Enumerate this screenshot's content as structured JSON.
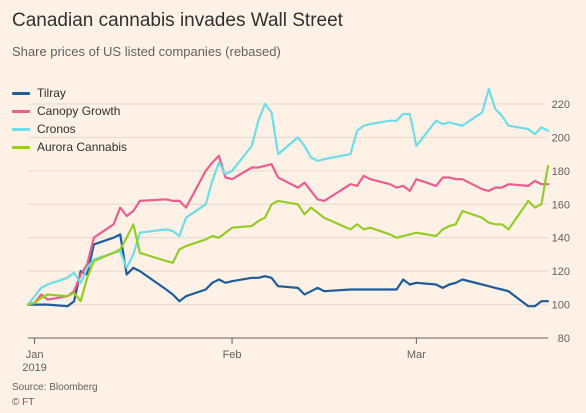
{
  "header": {
    "title": "Canadian cannabis invades Wall Street",
    "subtitle": "Share prices of US listed companies (rebased)"
  },
  "footer": {
    "source": "Source: Bloomberg",
    "credit": "© FT"
  },
  "colors": {
    "background": "#fff1e5",
    "gridline": "#e6d9ce",
    "axis": "#66605c"
  },
  "chart_data": {
    "type": "line",
    "title": "Canadian cannabis invades Wall Street",
    "subtitle": "Share prices of US listed companies (rebased)",
    "xlabel": "",
    "ylabel": "",
    "y_axis_side": "right",
    "ylim": [
      80,
      220
    ],
    "yticks": [
      80,
      100,
      120,
      140,
      160,
      180,
      200,
      220
    ],
    "x_domain": [
      "2019-01-01",
      "2019-03-21"
    ],
    "x_ticks": [
      {
        "date": "2019-01-02",
        "label": "Jan",
        "sublabel": "2019"
      },
      {
        "date": "2019-02-01",
        "label": "Feb",
        "sublabel": ""
      },
      {
        "date": "2019-03-01",
        "label": "Mar",
        "sublabel": ""
      }
    ],
    "grid": true,
    "legend_position": "top-left",
    "x": [
      "2019-01-01",
      "2019-01-02",
      "2019-01-03",
      "2019-01-04",
      "2019-01-07",
      "2019-01-08",
      "2019-01-09",
      "2019-01-10",
      "2019-01-11",
      "2019-01-14",
      "2019-01-15",
      "2019-01-16",
      "2019-01-17",
      "2019-01-18",
      "2019-01-22",
      "2019-01-23",
      "2019-01-24",
      "2019-01-25",
      "2019-01-28",
      "2019-01-29",
      "2019-01-30",
      "2019-01-31",
      "2019-02-01",
      "2019-02-04",
      "2019-02-05",
      "2019-02-06",
      "2019-02-07",
      "2019-02-08",
      "2019-02-11",
      "2019-02-12",
      "2019-02-13",
      "2019-02-14",
      "2019-02-15",
      "2019-02-19",
      "2019-02-20",
      "2019-02-21",
      "2019-02-22",
      "2019-02-25",
      "2019-02-26",
      "2019-02-27",
      "2019-02-28",
      "2019-03-01",
      "2019-03-04",
      "2019-03-05",
      "2019-03-06",
      "2019-03-07",
      "2019-03-08",
      "2019-03-11",
      "2019-03-12",
      "2019-03-13",
      "2019-03-14",
      "2019-03-15",
      "2019-03-18",
      "2019-03-19",
      "2019-03-20",
      "2019-03-21"
    ],
    "series": [
      {
        "name": "Tilray",
        "color": "#1f5c99",
        "values": [
          100,
          100,
          100,
          100,
          99,
          102,
          120,
          118,
          136,
          140,
          142,
          118,
          122,
          120,
          109,
          106,
          102,
          105,
          109,
          113,
          115,
          113,
          114,
          116,
          116,
          117,
          116,
          111,
          110,
          106,
          108,
          110,
          108,
          109,
          109,
          109,
          109,
          109,
          109,
          115,
          112,
          113,
          112,
          110,
          112,
          113,
          115,
          112,
          111,
          110,
          109,
          108,
          99,
          99,
          102,
          102
        ]
      },
      {
        "name": "Canopy Growth",
        "color": "#eb5e8d",
        "values": [
          100,
          101,
          106,
          103,
          105,
          108,
          118,
          124,
          140,
          148,
          158,
          153,
          156,
          162,
          163,
          162,
          162,
          158,
          180,
          185,
          189,
          176,
          175,
          182,
          182,
          183,
          184,
          176,
          170,
          173,
          168,
          163,
          162,
          172,
          171,
          177,
          175,
          172,
          170,
          171,
          168,
          175,
          171,
          176,
          176,
          175,
          175,
          169,
          168,
          170,
          170,
          172,
          171,
          174,
          172,
          172
        ]
      },
      {
        "name": "Cronos",
        "color": "#6fdde8",
        "values": [
          100,
          105,
          110,
          112,
          116,
          119,
          113,
          122,
          127,
          131,
          132,
          122,
          130,
          143,
          145,
          144,
          141,
          152,
          160,
          174,
          185,
          178,
          180,
          195,
          210,
          220,
          215,
          190,
          200,
          195,
          188,
          186,
          187,
          190,
          204,
          207,
          208,
          210,
          210,
          214,
          214,
          195,
          210,
          208,
          209,
          208,
          207,
          215,
          229,
          217,
          213,
          207,
          205,
          202,
          206,
          204
        ]
      },
      {
        "name": "Aurora Cannabis",
        "color": "#96cc28",
        "values": [
          100,
          101,
          104,
          106,
          105,
          107,
          102,
          116,
          126,
          131,
          133,
          140,
          148,
          131,
          126,
          125,
          133,
          135,
          139,
          141,
          140,
          143,
          146,
          147,
          150,
          152,
          160,
          162,
          160,
          154,
          158,
          155,
          152,
          145,
          148,
          145,
          146,
          142,
          140,
          141,
          142,
          143,
          141,
          145,
          147,
          148,
          156,
          152,
          149,
          148,
          148,
          145,
          162,
          158,
          160,
          183
        ]
      }
    ]
  }
}
